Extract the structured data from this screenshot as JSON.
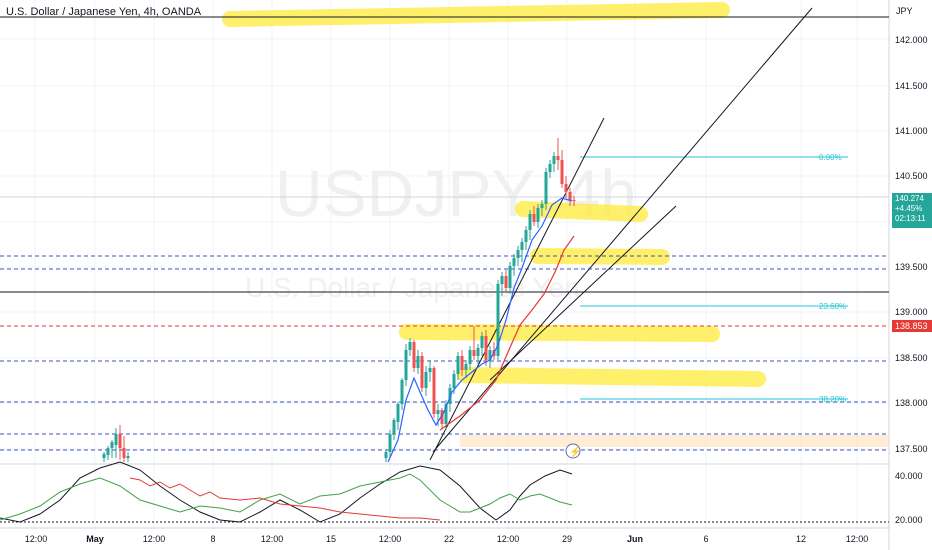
{
  "header": {
    "title": "U.S. Dollar / Japanese Yen, 4h, OANDA"
  },
  "watermark": {
    "symbol": "USDJPY, 4h",
    "name": "U.S. Dollar / Japanese Yen"
  },
  "price_scale": {
    "currency": "JPY",
    "ticks": [
      "142.000",
      "141.500",
      "141.000",
      "140.500",
      "139.500",
      "139.000",
      "138.500",
      "138.000",
      "137.500"
    ],
    "indicator_ticks": [
      "40.000",
      "20.000"
    ]
  },
  "time_axis": {
    "ticks": [
      "12:00",
      "May",
      "12:00",
      "8",
      "12:00",
      "15",
      "12:00",
      "22",
      "12:00",
      "29",
      "Jun",
      "6",
      "12",
      "12:00"
    ]
  },
  "price_tags": {
    "last_price": "140.274",
    "change": "+4.45%",
    "countdown": "02:13:11",
    "level": "138.853"
  },
  "fib_labels": [
    "0.00%",
    "23.60%",
    "38.20%"
  ],
  "colors": {
    "up": "#26a69a",
    "down": "#ef5350",
    "highlight": "#ffeb3b",
    "fib": "#26c6da",
    "dashed_level": "#3f51b5",
    "red_level": "#e53935",
    "ma_fast": "#2962ff",
    "ma_slow": "#e53935"
  },
  "chart_data": {
    "type": "candlestick",
    "symbol": "USDJPY",
    "timeframe": "4h",
    "ylim": [
      137.1,
      142.4
    ],
    "current_price": 140.274,
    "candles_approx": [
      {
        "t": "May 3",
        "o": 137.48,
        "h": 137.55,
        "l": 137.4,
        "c": 137.52
      },
      {
        "t": "May 4",
        "o": 137.52,
        "h": 137.75,
        "l": 137.45,
        "c": 137.7
      },
      {
        "t": "May 5",
        "o": 137.7,
        "h": 137.78,
        "l": 137.4,
        "c": 137.45
      },
      {
        "t": "May 18",
        "o": 137.45,
        "h": 137.9,
        "l": 137.4,
        "c": 137.85
      },
      {
        "t": "May 19",
        "o": 137.85,
        "h": 138.8,
        "l": 137.8,
        "c": 138.7
      },
      {
        "t": "May 20",
        "o": 138.7,
        "h": 138.75,
        "l": 137.7,
        "c": 137.85
      },
      {
        "t": "May 22",
        "o": 137.85,
        "h": 138.55,
        "l": 137.85,
        "c": 138.45
      },
      {
        "t": "May 23",
        "o": 138.45,
        "h": 138.9,
        "l": 138.3,
        "c": 138.75
      },
      {
        "t": "May 24",
        "o": 138.75,
        "h": 139.5,
        "l": 138.6,
        "c": 139.4
      },
      {
        "t": "May 25",
        "o": 139.4,
        "h": 140.0,
        "l": 139.3,
        "c": 139.9
      },
      {
        "t": "May 26",
        "o": 139.9,
        "h": 140.9,
        "l": 139.8,
        "c": 140.8
      },
      {
        "t": "May 29",
        "o": 140.8,
        "h": 140.85,
        "l": 140.2,
        "c": 140.274
      }
    ],
    "horizontal_levels": [
      139.63,
      139.48,
      138.85,
      138.5,
      138.02,
      137.65,
      137.48,
      139.22
    ],
    "fibonacci": [
      {
        "label": "0.00%",
        "price": 140.72
      },
      {
        "label": "23.60%",
        "price": 139.07
      },
      {
        "label": "38.20%",
        "price": 138.05
      }
    ],
    "grid": true
  }
}
